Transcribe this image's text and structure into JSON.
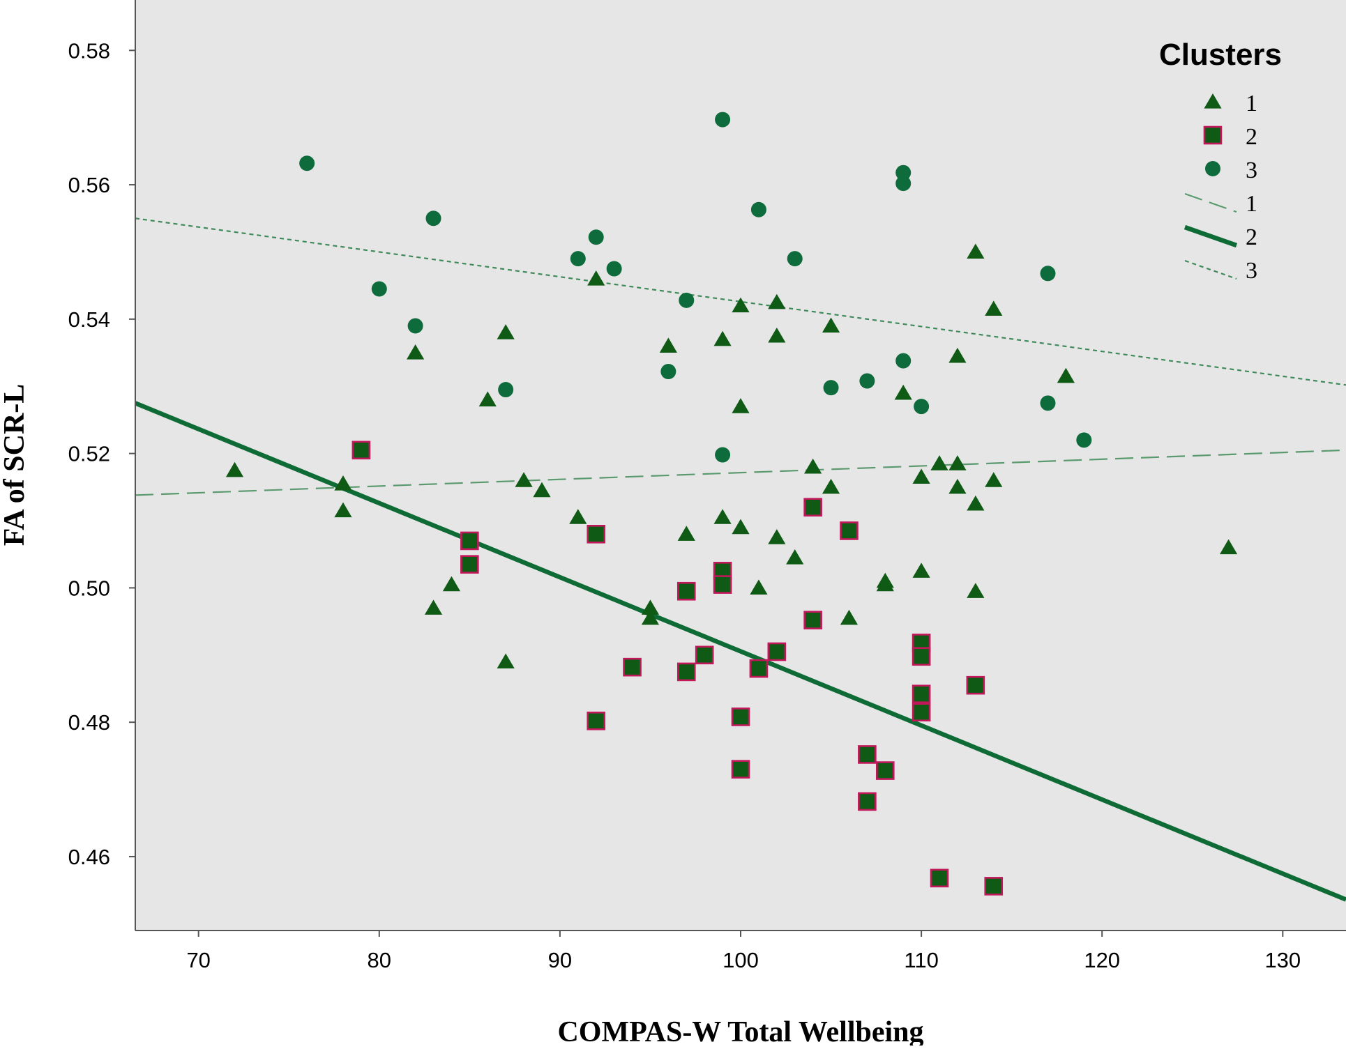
{
  "chart_data": {
    "type": "scatter",
    "xlabel": "COMPAS-W Total Wellbeing",
    "ylabel": "FA of SCR-L",
    "xlim": [
      66.5,
      133.5
    ],
    "ylim": [
      0.449,
      0.5875
    ],
    "xticks": [
      70,
      80,
      90,
      100,
      110,
      120,
      130
    ],
    "yticks": [
      0.46,
      0.48,
      0.5,
      0.52,
      0.54,
      0.56,
      0.58
    ],
    "ytick_labels": [
      "0.46",
      "0.48",
      "0.50",
      "0.52",
      "0.54",
      "0.56",
      "0.58"
    ],
    "grid": false,
    "background": "#e6e6e6",
    "legend": {
      "title": "Clusters",
      "placement": "top-right",
      "marker_entries": [
        {
          "label": "1",
          "marker": "triangle"
        },
        {
          "label": "2",
          "marker": "square"
        },
        {
          "label": "3",
          "marker": "circle"
        }
      ],
      "line_entries": [
        {
          "label": "1",
          "style": "long-dash"
        },
        {
          "label": "2",
          "style": "solid-thick"
        },
        {
          "label": "3",
          "style": "short-dash"
        }
      ]
    },
    "colors": {
      "marker_fill": "#0f5a14",
      "cluster3_fill": "#0e6b3c",
      "square_edge": "#c2185b",
      "fit_line_1": "#5a9a6e",
      "fit_line_2": "#0e6b35",
      "fit_line_3": "#3f8a5a"
    },
    "series": [
      {
        "name": "1",
        "marker": "triangle",
        "points": [
          [
            72,
            0.5175
          ],
          [
            78,
            0.5155
          ],
          [
            78,
            0.5115
          ],
          [
            82,
            0.535
          ],
          [
            83,
            0.497
          ],
          [
            84,
            0.5005
          ],
          [
            86,
            0.528
          ],
          [
            87,
            0.538
          ],
          [
            87,
            0.489
          ],
          [
            88,
            0.516
          ],
          [
            89,
            0.5145
          ],
          [
            91,
            0.5105
          ],
          [
            92,
            0.546
          ],
          [
            95,
            0.497
          ],
          [
            95,
            0.4955
          ],
          [
            96,
            0.536
          ],
          [
            97,
            0.508
          ],
          [
            99,
            0.537
          ],
          [
            99,
            0.5105
          ],
          [
            100,
            0.542
          ],
          [
            100,
            0.527
          ],
          [
            100,
            0.509
          ],
          [
            101,
            0.5
          ],
          [
            102,
            0.5425
          ],
          [
            102,
            0.5375
          ],
          [
            102,
            0.5075
          ],
          [
            103,
            0.5045
          ],
          [
            104,
            0.518
          ],
          [
            105,
            0.539
          ],
          [
            105,
            0.515
          ],
          [
            106,
            0.4955
          ],
          [
            108,
            0.501
          ],
          [
            108,
            0.5005
          ],
          [
            109,
            0.529
          ],
          [
            110,
            0.5165
          ],
          [
            110,
            0.5025
          ],
          [
            111,
            0.5185
          ],
          [
            112,
            0.5345
          ],
          [
            112,
            0.5185
          ],
          [
            112,
            0.515
          ],
          [
            113,
            0.55
          ],
          [
            113,
            0.5125
          ],
          [
            113,
            0.4995
          ],
          [
            114,
            0.5415
          ],
          [
            114,
            0.516
          ],
          [
            118,
            0.5315
          ],
          [
            127,
            0.506
          ]
        ]
      },
      {
        "name": "2",
        "marker": "square",
        "points": [
          [
            79,
            0.5205
          ],
          [
            85,
            0.507
          ],
          [
            85,
            0.5035
          ],
          [
            92,
            0.508
          ],
          [
            92,
            0.4802
          ],
          [
            94,
            0.4882
          ],
          [
            97,
            0.4995
          ],
          [
            97,
            0.4875
          ],
          [
            98,
            0.49
          ],
          [
            99,
            0.5025
          ],
          [
            99,
            0.5005
          ],
          [
            100,
            0.4808
          ],
          [
            100,
            0.473
          ],
          [
            101,
            0.488
          ],
          [
            102,
            0.4905
          ],
          [
            104,
            0.512
          ],
          [
            104,
            0.4952
          ],
          [
            106,
            0.5085
          ],
          [
            107,
            0.4752
          ],
          [
            107,
            0.4682
          ],
          [
            108,
            0.4728
          ],
          [
            110,
            0.4918
          ],
          [
            110,
            0.4898
          ],
          [
            110,
            0.4842
          ],
          [
            110,
            0.4815
          ],
          [
            111,
            0.4568
          ],
          [
            113,
            0.4855
          ],
          [
            114,
            0.4556
          ]
        ]
      },
      {
        "name": "3",
        "marker": "circle",
        "points": [
          [
            76,
            0.5632
          ],
          [
            80,
            0.5445
          ],
          [
            82,
            0.539
          ],
          [
            83,
            0.555
          ],
          [
            87,
            0.5295
          ],
          [
            91,
            0.549
          ],
          [
            92,
            0.5522
          ],
          [
            93,
            0.5475
          ],
          [
            96,
            0.5322
          ],
          [
            97,
            0.5428
          ],
          [
            99,
            0.5697
          ],
          [
            99,
            0.5198
          ],
          [
            101,
            0.5563
          ],
          [
            103,
            0.549
          ],
          [
            105,
            0.5298
          ],
          [
            107,
            0.5308
          ],
          [
            109,
            0.5618
          ],
          [
            109,
            0.5602
          ],
          [
            109,
            0.5338
          ],
          [
            110,
            0.527
          ],
          [
            117,
            0.5468
          ],
          [
            117,
            0.5275
          ],
          [
            119,
            0.522
          ]
        ]
      }
    ],
    "fit_lines": [
      {
        "name": "1",
        "x": [
          66.5,
          133.5
        ],
        "y": [
          0.5138,
          0.5205
        ]
      },
      {
        "name": "2",
        "x": [
          66.5,
          133.5
        ],
        "y": [
          0.5275,
          0.4536
        ]
      },
      {
        "name": "3",
        "x": [
          66.5,
          133.5
        ],
        "y": [
          0.555,
          0.5302
        ]
      }
    ]
  }
}
